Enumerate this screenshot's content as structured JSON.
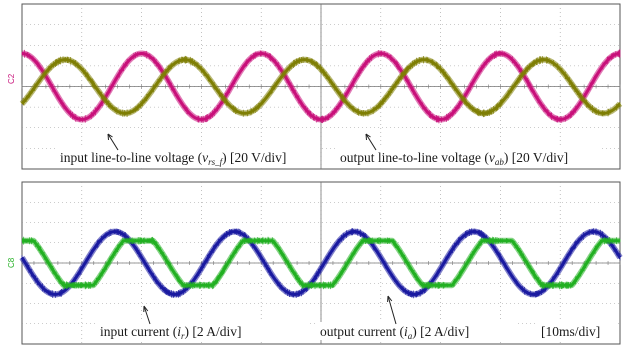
{
  "chart_data": [
    {
      "type": "line",
      "panel": "top",
      "channel_labels": {
        "left_tag": "C2"
      },
      "time_scale": "10ms/div",
      "x_unit": "ms",
      "xlim": [
        0,
        100
      ],
      "grid": true,
      "series": [
        {
          "name": "input line-to-line voltage",
          "symbol": "v_rs_f",
          "color": "#c8117a",
          "scale": "20 V/div",
          "waveform": "sine",
          "amplitude_div": 1.6,
          "period_ms": 20,
          "phase_deg": 90
        },
        {
          "name": "output line-to-line voltage",
          "symbol": "v_ab",
          "color": "#7f7f05",
          "scale": "20 V/div",
          "waveform": "sine",
          "amplitude_div": 1.3,
          "period_ms": 20,
          "phase_deg": -40
        }
      ],
      "annotations": [
        {
          "text": "input line-to-line voltage (",
          "math": "v",
          "sub": "rs_f",
          "tail": ") [20 V/div]"
        },
        {
          "text": "output line-to-line voltage (",
          "math": "v",
          "sub": "ab",
          "tail": ") [20 V/div]"
        }
      ]
    },
    {
      "type": "line",
      "panel": "bottom",
      "channel_labels": {
        "left_tag": "C8"
      },
      "time_scale": "10ms/div",
      "x_unit": "ms",
      "xlim": [
        0,
        100
      ],
      "grid": true,
      "series": [
        {
          "name": "input current",
          "symbol": "i_r",
          "color": "#1a1aa0",
          "scale": "2 A/div",
          "waveform": "sine",
          "amplitude_div": 1.55,
          "period_ms": 20,
          "phase_deg": 170
        },
        {
          "name": "output current",
          "symbol": "i_a",
          "color": "#22b022",
          "scale": "2 A/div",
          "waveform": "flat-top sine",
          "amplitude_div": 1.1,
          "period_ms": 20,
          "phase_deg": 100
        }
      ],
      "annotations": [
        {
          "text": "input current (",
          "math": "i",
          "sub": "r",
          "tail": ") [2 A/div]"
        },
        {
          "text": "output current (",
          "math": "i",
          "sub": "a",
          "tail": ") [2 A/div]"
        },
        {
          "text": "[10ms/div]"
        }
      ]
    }
  ]
}
